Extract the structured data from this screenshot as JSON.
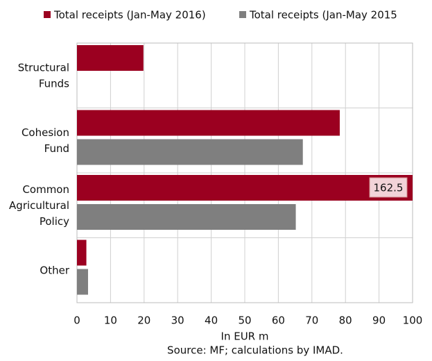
{
  "chart_data": {
    "type": "hbar",
    "categories": [
      [
        "Structural",
        "Funds"
      ],
      [
        "Cohesion",
        "Fund"
      ],
      [
        "Common",
        "Agricultural",
        "Policy"
      ],
      [
        "Other"
      ]
    ],
    "series": [
      {
        "name": "Total receipts (Jan-May 2016)",
        "color": "#9b0020",
        "values": [
          19.8,
          78.3,
          162.5,
          2.8
        ],
        "value_labels": [
          null,
          null,
          "162.5",
          null
        ]
      },
      {
        "name": "Total receipts (Jan-May 2015",
        "color": "#7f7f7f",
        "values": [
          null,
          67.3,
          65.2,
          3.3
        ]
      }
    ],
    "xlim": [
      0,
      100
    ],
    "xticks": [
      0,
      10,
      20,
      30,
      40,
      50,
      60,
      70,
      80,
      90,
      100
    ],
    "xlabel": "In EUR m",
    "note": "Source: MF; calculations by IMAD.",
    "grid": true
  }
}
